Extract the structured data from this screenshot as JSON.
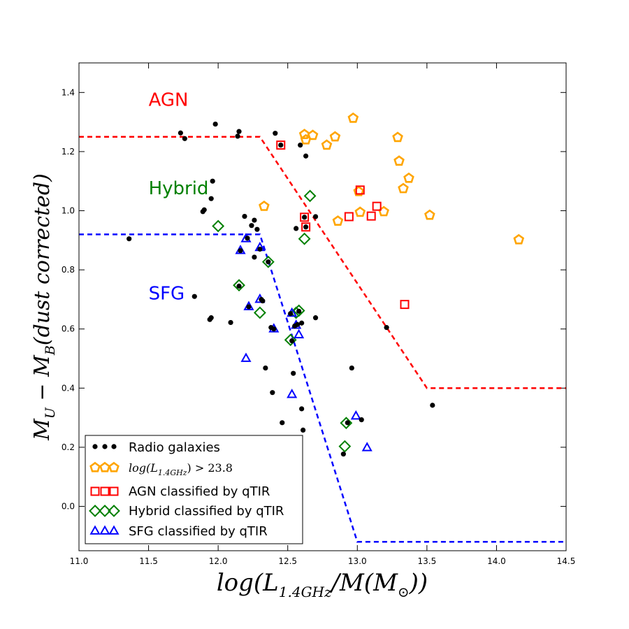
{
  "chart_data": {
    "type": "scatter",
    "xlabel": "log(L_1.4GHz/M(M_⊙))",
    "ylabel": "M_U − M_B(dust corrected)",
    "xlim": [
      11.0,
      14.5
    ],
    "ylim": [
      -0.15,
      1.5
    ],
    "x_ticks": [
      11.0,
      11.5,
      12.0,
      12.5,
      13.0,
      13.5,
      14.0,
      14.5
    ],
    "x_tick_labels": [
      "11.0",
      "11.5",
      "12.0",
      "12.5",
      "13.0",
      "13.5",
      "14.0",
      "14.5"
    ],
    "y_ticks": [
      0.0,
      0.2,
      0.4,
      0.6,
      0.8,
      1.0,
      1.2,
      1.4
    ],
    "y_tick_labels": [
      "0.0",
      "0.2",
      "0.4",
      "0.6",
      "0.8",
      "1.0",
      "1.2",
      "1.4"
    ],
    "region_labels": [
      {
        "text": "AGN",
        "x": 11.5,
        "y": 1.355,
        "color": "#ff0000"
      },
      {
        "text": "Hybrid",
        "x": 11.5,
        "y": 1.055,
        "color": "#008000"
      },
      {
        "text": "SFG",
        "x": 11.5,
        "y": 0.7,
        "color": "#0000ff"
      }
    ],
    "boundaries": [
      {
        "name": "agn-boundary",
        "color": "#ff0000",
        "points": [
          [
            11.0,
            1.25
          ],
          [
            12.3,
            1.25
          ],
          [
            13.5,
            0.4
          ],
          [
            14.5,
            0.4
          ]
        ]
      },
      {
        "name": "sfg-boundary",
        "color": "#0000ff",
        "points": [
          [
            11.0,
            0.92
          ],
          [
            12.3,
            0.92
          ],
          [
            13.0,
            -0.12
          ],
          [
            14.5,
            -0.12
          ]
        ]
      }
    ],
    "series": [
      {
        "name": "Radio galaxies",
        "marker": "dot",
        "color": "#000000",
        "points": [
          [
            11.36,
            0.905
          ],
          [
            11.73,
            1.263
          ],
          [
            11.76,
            1.244
          ],
          [
            11.83,
            0.71
          ],
          [
            11.89,
            0.997
          ],
          [
            11.9,
            1.003
          ],
          [
            11.94,
            0.632
          ],
          [
            11.95,
            0.638
          ],
          [
            11.95,
            1.041
          ],
          [
            11.96,
            1.1
          ],
          [
            11.98,
            1.293
          ],
          [
            12.09,
            0.622
          ],
          [
            12.14,
            1.252
          ],
          [
            12.15,
            1.268
          ],
          [
            12.15,
            0.745
          ],
          [
            12.16,
            0.865
          ],
          [
            12.19,
            0.981
          ],
          [
            12.21,
            0.907
          ],
          [
            12.22,
            0.675
          ],
          [
            12.24,
            0.95
          ],
          [
            12.26,
            0.968
          ],
          [
            12.26,
            0.843
          ],
          [
            12.28,
            0.937
          ],
          [
            12.3,
            0.87
          ],
          [
            12.31,
            0.7
          ],
          [
            12.32,
            0.695
          ],
          [
            12.34,
            0.468
          ],
          [
            12.36,
            0.827
          ],
          [
            12.38,
            0.605
          ],
          [
            12.39,
            0.385
          ],
          [
            12.4,
            0.6
          ],
          [
            12.41,
            1.262
          ],
          [
            12.45,
            1.222
          ],
          [
            12.46,
            0.283
          ],
          [
            12.52,
            0.652
          ],
          [
            12.53,
            0.56
          ],
          [
            12.54,
            0.45
          ],
          [
            12.55,
            0.61
          ],
          [
            12.56,
            0.94
          ],
          [
            12.57,
            0.615
          ],
          [
            12.58,
            0.66
          ],
          [
            12.59,
            1.222
          ],
          [
            12.6,
            0.62
          ],
          [
            12.6,
            0.33
          ],
          [
            12.61,
            0.258
          ],
          [
            12.62,
            0.978
          ],
          [
            12.63,
            0.945
          ],
          [
            12.63,
            1.185
          ],
          [
            12.7,
            0.98
          ],
          [
            12.7,
            0.638
          ],
          [
            12.9,
            0.177
          ],
          [
            12.93,
            0.283
          ],
          [
            12.96,
            0.468
          ],
          [
            13.03,
            0.293
          ],
          [
            13.21,
            0.605
          ],
          [
            13.54,
            0.342
          ]
        ]
      },
      {
        "name": "log(L_1.4GHz) > 23.8",
        "marker": "pentagon",
        "color": "#ffa500",
        "points": [
          [
            12.33,
            1.015
          ],
          [
            12.62,
            1.258
          ],
          [
            12.63,
            1.24
          ],
          [
            12.68,
            1.255
          ],
          [
            12.78,
            1.222
          ],
          [
            12.84,
            1.25
          ],
          [
            12.86,
            0.965
          ],
          [
            12.97,
            1.313
          ],
          [
            13.01,
            1.065
          ],
          [
            13.02,
            0.995
          ],
          [
            13.19,
            0.997
          ],
          [
            13.29,
            1.248
          ],
          [
            13.3,
            1.168
          ],
          [
            13.33,
            1.075
          ],
          [
            13.37,
            1.11
          ],
          [
            13.52,
            0.985
          ],
          [
            14.16,
            0.902
          ]
        ]
      },
      {
        "name": "AGN classified by qTIR",
        "marker": "square",
        "color": "#ff0000",
        "points": [
          [
            12.45,
            1.222
          ],
          [
            12.62,
            0.978
          ],
          [
            12.63,
            0.945
          ],
          [
            12.94,
            0.98
          ],
          [
            13.02,
            1.07
          ],
          [
            13.1,
            0.982
          ],
          [
            13.14,
            1.015
          ],
          [
            13.34,
            0.683
          ]
        ]
      },
      {
        "name": "Hybrid classified by qTIR",
        "marker": "diamond",
        "color": "#008000",
        "points": [
          [
            12.0,
            0.948
          ],
          [
            12.15,
            0.748
          ],
          [
            12.3,
            0.655
          ],
          [
            12.36,
            0.827
          ],
          [
            12.52,
            0.563
          ],
          [
            12.56,
            0.655
          ],
          [
            12.58,
            0.662
          ],
          [
            12.62,
            0.905
          ],
          [
            12.66,
            1.05
          ],
          [
            12.91,
            0.203
          ],
          [
            12.92,
            0.282
          ]
        ]
      },
      {
        "name": "SFG classified by qTIR",
        "marker": "triangle",
        "color": "#0000ff",
        "points": [
          [
            12.16,
            0.865
          ],
          [
            12.2,
            0.905
          ],
          [
            12.2,
            0.5
          ],
          [
            12.22,
            0.675
          ],
          [
            12.3,
            0.875
          ],
          [
            12.3,
            0.7
          ],
          [
            12.4,
            0.6
          ],
          [
            12.53,
            0.653
          ],
          [
            12.53,
            0.378
          ],
          [
            12.56,
            0.612
          ],
          [
            12.58,
            0.58
          ],
          [
            12.99,
            0.305
          ],
          [
            13.07,
            0.198
          ]
        ]
      }
    ],
    "legend": {
      "location": "lower-left",
      "entries": [
        {
          "label": "Radio galaxies",
          "marker": "dot",
          "color": "#000000"
        },
        {
          "label": "log(L_1.4GHz) > 23.8",
          "marker": "pentagon",
          "color": "#ffa500"
        },
        {
          "label": "AGN classified by qTIR",
          "marker": "square",
          "color": "#ff0000"
        },
        {
          "label": "Hybrid classified by qTIR",
          "marker": "diamond",
          "color": "#008000"
        },
        {
          "label": "SFG classified by qTIR",
          "marker": "triangle",
          "color": "#0000ff"
        }
      ]
    }
  }
}
